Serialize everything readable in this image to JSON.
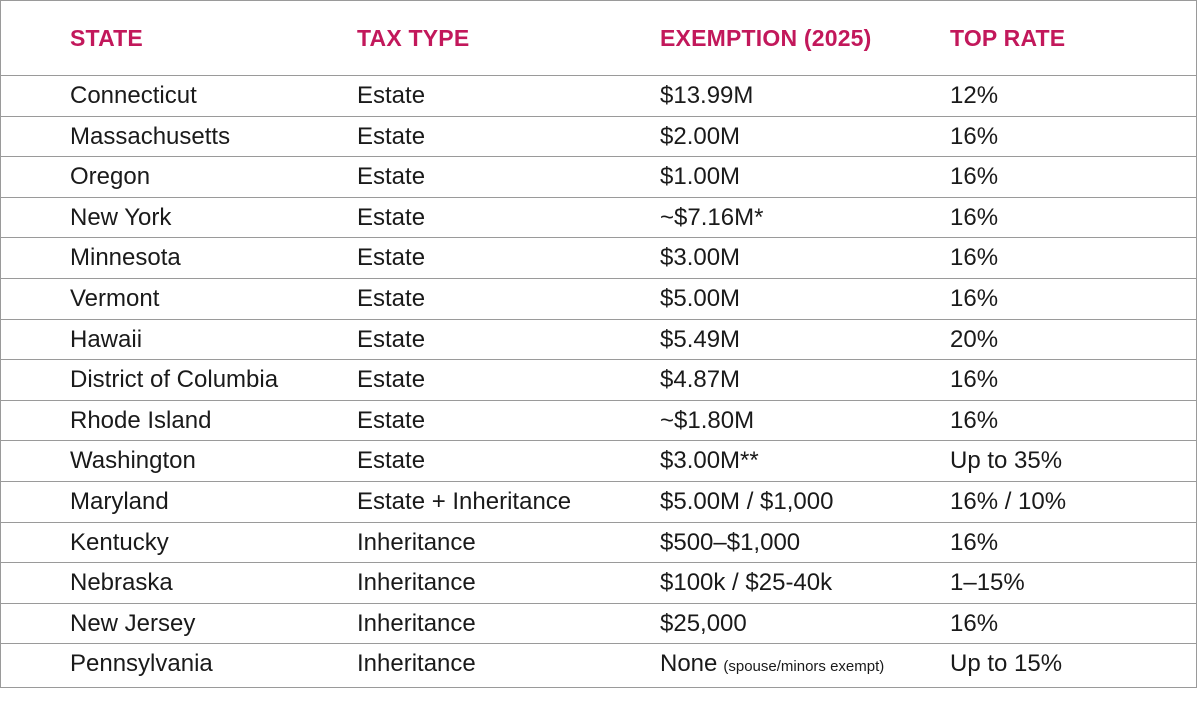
{
  "colors": {
    "header_text": "#c2185b",
    "body_text": "#1a1a1a",
    "border": "#9a9a9a"
  },
  "header": {
    "state": "STATE",
    "tax_type": "TAX TYPE",
    "exemption": "EXEMPTION (2025)",
    "top_rate": "TOP RATE"
  },
  "rows": [
    {
      "state": "Connecticut",
      "tax_type": "Estate",
      "exemption": "$13.99M",
      "note": "",
      "top_rate": "12%"
    },
    {
      "state": "Massachusetts",
      "tax_type": "Estate",
      "exemption": "$2.00M",
      "note": "",
      "top_rate": "16%"
    },
    {
      "state": "Oregon",
      "tax_type": "Estate",
      "exemption": "$1.00M",
      "note": "",
      "top_rate": "16%"
    },
    {
      "state": "New York",
      "tax_type": "Estate",
      "exemption": "~$7.16M*",
      "note": "",
      "top_rate": "16%"
    },
    {
      "state": "Minnesota",
      "tax_type": "Estate",
      "exemption": "$3.00M",
      "note": "",
      "top_rate": "16%"
    },
    {
      "state": "Vermont",
      "tax_type": "Estate",
      "exemption": "$5.00M",
      "note": "",
      "top_rate": "16%"
    },
    {
      "state": "Hawaii",
      "tax_type": "Estate",
      "exemption": "$5.49M",
      "note": "",
      "top_rate": "20%"
    },
    {
      "state": "District of Columbia",
      "tax_type": "Estate",
      "exemption": "$4.87M",
      "note": "",
      "top_rate": "16%"
    },
    {
      "state": "Rhode Island",
      "tax_type": "Estate",
      "exemption": "~$1.80M",
      "note": "",
      "top_rate": "16%"
    },
    {
      "state": "Washington",
      "tax_type": "Estate",
      "exemption": "$3.00M**",
      "note": "",
      "top_rate": "Up to 35%"
    },
    {
      "state": "Maryland",
      "tax_type": "Estate + Inheritance",
      "exemption": "$5.00M / $1,000",
      "note": "",
      "top_rate": "16% / 10%"
    },
    {
      "state": "Kentucky",
      "tax_type": "Inheritance",
      "exemption": "$500–$1,000",
      "note": "",
      "top_rate": "16%"
    },
    {
      "state": "Nebraska",
      "tax_type": "Inheritance",
      "exemption": "$100k / $25-40k",
      "note": "",
      "top_rate": "1–15%"
    },
    {
      "state": "New Jersey",
      "tax_type": "Inheritance",
      "exemption": "$25,000",
      "note": "",
      "top_rate": "16%"
    },
    {
      "state": "Pennsylvania",
      "tax_type": "Inheritance",
      "exemption": "None",
      "note": "(spouse/minors exempt)",
      "top_rate": "Up to 15%"
    }
  ]
}
